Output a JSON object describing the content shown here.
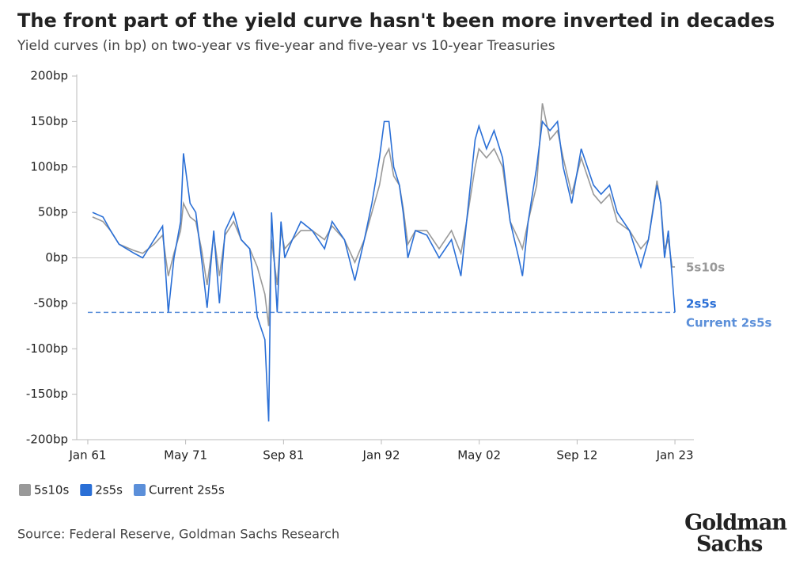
{
  "chart_data": {
    "type": "line",
    "title": "The front part of the yield curve hasn't been more inverted in decades",
    "subtitle": "Yield curves (in bp) on two-year vs five-year and five-year vs 10-year Treasuries",
    "x": [
      1961.5,
      1962.6,
      1963.4,
      1964.3,
      1965.9,
      1966.8,
      1968.0,
      1968.9,
      1969.5,
      1970.1,
      1970.8,
      1971.1,
      1971.8,
      1972.4,
      1973.0,
      1973.6,
      1974.3,
      1974.9,
      1975.5,
      1976.4,
      1977.2,
      1978.1,
      1978.9,
      1979.7,
      1980.1,
      1980.4,
      1981.0,
      1981.4,
      1981.8,
      1982.6,
      1983.5,
      1984.7,
      1986.0,
      1986.8,
      1988.1,
      1989.2,
      1990.2,
      1991.0,
      1991.8,
      1992.3,
      1992.8,
      1993.3,
      1993.9,
      1994.3,
      1994.8,
      1995.6,
      1996.8,
      1998.1,
      1999.4,
      2000.4,
      2001.0,
      2001.9,
      2002.3,
      2003.1,
      2003.9,
      2004.8,
      2005.6,
      2006.5,
      2006.9,
      2007.5,
      2008.4,
      2009.0,
      2009.8,
      2010.6,
      2011.2,
      2012.1,
      2013.1,
      2014.4,
      2015.2,
      2016.1,
      2016.9,
      2018.2,
      2019.4,
      2020.2,
      2021.1,
      2021.5,
      2021.9,
      2022.3,
      2022.7,
      2023.0
    ],
    "series": [
      {
        "name": "5s10s",
        "color": "#999999",
        "values": [
          45,
          40,
          30,
          15,
          8,
          5,
          15,
          25,
          -20,
          5,
          30,
          60,
          45,
          40,
          10,
          -30,
          25,
          -20,
          25,
          40,
          20,
          10,
          -10,
          -40,
          -75,
          20,
          -30,
          30,
          10,
          20,
          30,
          30,
          20,
          35,
          20,
          -5,
          20,
          50,
          80,
          110,
          120,
          90,
          80,
          55,
          15,
          30,
          30,
          10,
          30,
          5,
          40,
          100,
          120,
          110,
          120,
          100,
          40,
          20,
          10,
          40,
          80,
          170,
          130,
          140,
          110,
          70,
          110,
          70,
          60,
          70,
          40,
          30,
          10,
          20,
          85,
          60,
          10,
          20,
          -10,
          -10
        ]
      },
      {
        "name": "2s5s",
        "color": "#2a6fd6",
        "values": [
          50,
          45,
          30,
          15,
          5,
          0,
          20,
          35,
          -60,
          0,
          40,
          115,
          60,
          50,
          0,
          -55,
          30,
          -50,
          30,
          50,
          20,
          10,
          -65,
          -90,
          -180,
          50,
          -60,
          40,
          0,
          20,
          40,
          30,
          10,
          40,
          20,
          -25,
          20,
          60,
          110,
          150,
          150,
          100,
          80,
          50,
          0,
          30,
          25,
          0,
          20,
          -20,
          40,
          130,
          145,
          120,
          140,
          110,
          40,
          0,
          -20,
          40,
          100,
          150,
          140,
          150,
          100,
          60,
          120,
          80,
          70,
          80,
          50,
          30,
          -10,
          20,
          80,
          60,
          0,
          30,
          -20,
          -60
        ]
      }
    ],
    "reference_lines": [
      {
        "name": "Current 2s5s",
        "value": -60,
        "color": "#5b8fd9"
      }
    ],
    "xlim": [
      1960,
      2025
    ],
    "xticks": [
      {
        "value": 1961,
        "label": "Jan 61"
      },
      {
        "value": 1971.33,
        "label": "May 71"
      },
      {
        "value": 1981.67,
        "label": "Sep 81"
      },
      {
        "value": 1992,
        "label": "Jan 92"
      },
      {
        "value": 2002.33,
        "label": "May 02"
      },
      {
        "value": 2012.67,
        "label": "Sep 12"
      },
      {
        "value": 2023,
        "label": "Jan 23"
      }
    ],
    "ylim": [
      -200,
      200
    ],
    "yticks": [
      {
        "value": 200,
        "label": "200bp"
      },
      {
        "value": 150,
        "label": "150bp"
      },
      {
        "value": 100,
        "label": "100bp"
      },
      {
        "value": 50,
        "label": "50bp"
      },
      {
        "value": 0,
        "label": "0bp"
      },
      {
        "value": -50,
        "label": "-50bp"
      },
      {
        "value": -100,
        "label": "-100bp"
      },
      {
        "value": -150,
        "label": "-150bp"
      },
      {
        "value": -200,
        "label": "-200bp"
      }
    ],
    "zero_line": true,
    "source": "Source: Federal Reserve, Goldman Sachs Research",
    "logo": [
      "Goldman",
      "Sachs"
    ]
  }
}
